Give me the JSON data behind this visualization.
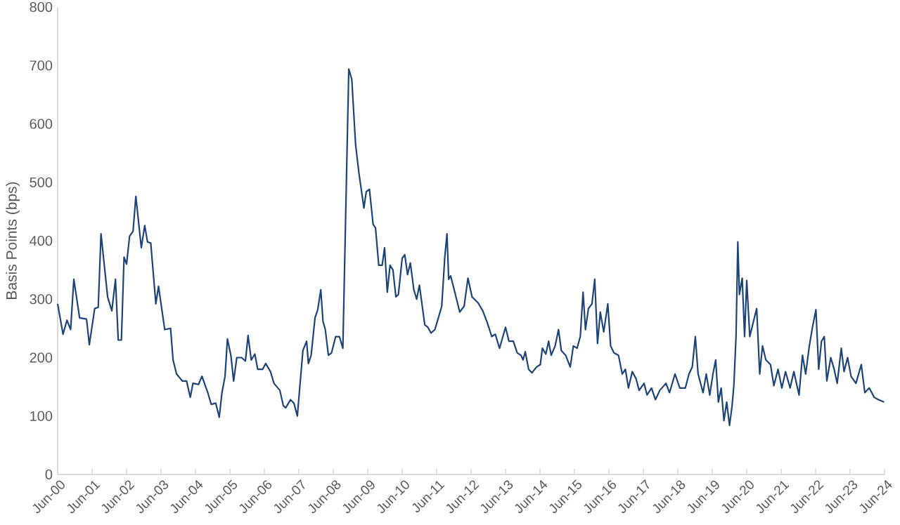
{
  "chart_data": {
    "type": "line",
    "ylabel": "Basis Points (bps)",
    "color": "#1d4478",
    "marker": "none",
    "line_style": "solid",
    "xlim": [
      "2000-06-01",
      "2024-06-01"
    ],
    "ylim": [
      0,
      800
    ],
    "xticks": [
      {
        "value": "2000-06-01",
        "label": "Jun-00"
      },
      {
        "value": "2001-06-01",
        "label": "Jun-01"
      },
      {
        "value": "2002-06-01",
        "label": "Jun-02"
      },
      {
        "value": "2003-06-01",
        "label": "Jun-03"
      },
      {
        "value": "2004-06-01",
        "label": "Jun-04"
      },
      {
        "value": "2005-06-01",
        "label": "Jun-05"
      },
      {
        "value": "2006-06-01",
        "label": "Jun-06"
      },
      {
        "value": "2007-06-01",
        "label": "Jun-07"
      },
      {
        "value": "2008-06-01",
        "label": "Jun-08"
      },
      {
        "value": "2009-06-01",
        "label": "Jun-09"
      },
      {
        "value": "2010-06-01",
        "label": "Jun-10"
      },
      {
        "value": "2011-06-01",
        "label": "Jun-11"
      },
      {
        "value": "2012-06-01",
        "label": "Jun-12"
      },
      {
        "value": "2013-06-01",
        "label": "Jun-13"
      },
      {
        "value": "2014-06-01",
        "label": "Jun-14"
      },
      {
        "value": "2015-06-01",
        "label": "Jun-15"
      },
      {
        "value": "2016-06-01",
        "label": "Jun-16"
      },
      {
        "value": "2017-06-01",
        "label": "Jun-17"
      },
      {
        "value": "2018-06-01",
        "label": "Jun-18"
      },
      {
        "value": "2019-06-01",
        "label": "Jun-19"
      },
      {
        "value": "2020-06-01",
        "label": "Jun-20"
      },
      {
        "value": "2021-06-01",
        "label": "Jun-21"
      },
      {
        "value": "2022-06-01",
        "label": "Jun-22"
      },
      {
        "value": "2023-06-01",
        "label": "Jun-23"
      },
      {
        "value": "2024-06-01",
        "label": "Jun-24"
      }
    ],
    "yticks": [
      0,
      100,
      200,
      300,
      400,
      500,
      600,
      700,
      800
    ],
    "x": [
      "2000-06-01",
      "2000-07-28",
      "2000-09-08",
      "2000-10-17",
      "2000-11-20",
      "2001-01-21",
      "2001-04-03",
      "2001-05-02",
      "2001-06-28",
      "2001-08-05",
      "2001-09-04",
      "2001-11-13",
      "2001-12-28",
      "2002-02-05",
      "2002-03-04",
      "2002-04-07",
      "2002-05-05",
      "2002-06-01",
      "2002-07-03",
      "2002-08-09",
      "2002-09-08",
      "2002-11-05",
      "2002-12-11",
      "2003-01-10",
      "2003-02-13",
      "2003-04-07",
      "2003-05-05",
      "2003-07-10",
      "2003-09-11",
      "2003-10-07",
      "2003-11-13",
      "2004-01-14",
      "2004-02-27",
      "2004-04-07",
      "2004-05-05",
      "2004-07-03",
      "2004-08-09",
      "2004-10-10",
      "2004-11-16",
      "2005-01-03",
      "2005-02-09",
      "2005-03-08",
      "2005-04-10",
      "2005-05-05",
      "2005-06-11",
      "2005-07-10",
      "2005-08-13",
      "2005-10-03",
      "2005-11-13",
      "2005-12-11",
      "2006-01-14",
      "2006-02-20",
      "2006-03-22",
      "2006-05-13",
      "2006-06-15",
      "2006-08-05",
      "2006-09-11",
      "2006-11-13",
      "2006-12-19",
      "2007-01-14",
      "2007-03-04",
      "2007-04-10",
      "2007-05-16",
      "2007-07-14",
      "2007-08-23",
      "2007-09-11",
      "2007-10-10",
      "2007-11-20",
      "2007-12-19",
      "2008-01-21",
      "2008-02-13",
      "2008-03-08",
      "2008-04-10",
      "2008-05-13",
      "2008-06-26",
      "2008-08-05",
      "2008-09-11",
      "2008-11-13",
      "2008-12-15",
      "2009-01-25",
      "2009-02-27",
      "2009-04-21",
      "2009-05-16",
      "2009-06-19",
      "2009-07-28",
      "2009-08-23",
      "2009-09-26",
      "2009-11-02",
      "2009-11-27",
      "2009-12-26",
      "2010-01-25",
      "2010-02-23",
      "2010-03-26",
      "2010-04-21",
      "2010-06-01",
      "2010-06-28",
      "2010-07-28",
      "2010-08-27",
      "2010-10-03",
      "2010-11-02",
      "2010-12-01",
      "2011-01-28",
      "2011-02-27",
      "2011-04-03",
      "2011-05-13",
      "2011-06-19",
      "2011-07-25",
      "2011-08-27",
      "2011-09-19",
      "2011-10-07",
      "2011-10-28",
      "2011-12-11",
      "2012-02-02",
      "2012-03-19",
      "2012-04-28",
      "2012-06-11",
      "2012-08-13",
      "2012-10-03",
      "2012-11-20",
      "2013-01-07",
      "2013-02-13",
      "2013-03-29",
      "2013-06-01",
      "2013-07-07",
      "2013-08-23",
      "2013-10-03",
      "2013-11-13",
      "2013-12-04",
      "2013-12-28",
      "2014-02-02",
      "2014-03-08",
      "2014-04-25",
      "2014-06-04",
      "2014-06-26",
      "2014-08-02",
      "2014-09-01",
      "2014-09-28",
      "2014-11-09",
      "2014-12-15",
      "2015-01-14",
      "2015-02-27",
      "2015-04-17",
      "2015-05-20",
      "2015-06-28",
      "2015-08-02",
      "2015-09-01",
      "2015-09-26",
      "2015-10-28",
      "2015-12-04",
      "2016-01-03",
      "2016-02-02",
      "2016-03-01",
      "2016-04-07",
      "2016-05-20",
      "2016-06-19",
      "2016-07-25",
      "2016-09-11",
      "2016-10-21",
      "2016-11-23",
      "2016-12-26",
      "2017-02-05",
      "2017-03-15",
      "2017-04-17",
      "2017-06-08",
      "2017-07-10",
      "2017-08-27",
      "2017-10-07",
      "2017-11-23",
      "2018-01-28",
      "2018-03-04",
      "2018-05-02",
      "2018-06-22",
      "2018-08-20",
      "2018-09-28",
      "2018-11-02",
      "2018-12-04",
      "2019-01-03",
      "2019-02-23",
      "2019-03-29",
      "2019-05-05",
      "2019-06-08",
      "2019-07-07",
      "2019-08-05",
      "2019-09-04",
      "2019-10-03",
      "2019-11-02",
      "2019-12-01",
      "2019-12-28",
      "2020-01-17",
      "2020-02-09",
      "2020-02-27",
      "2020-03-15",
      "2020-04-14",
      "2020-05-09",
      "2020-06-01",
      "2020-07-03",
      "2020-08-09",
      "2020-09-15",
      "2020-10-17",
      "2020-11-16",
      "2020-12-22",
      "2021-02-09",
      "2021-03-15",
      "2021-04-28",
      "2021-06-08",
      "2021-07-17",
      "2021-09-04",
      "2021-10-14",
      "2021-12-08",
      "2022-01-14",
      "2022-02-16",
      "2022-03-26",
      "2022-04-28",
      "2022-06-04",
      "2022-07-03",
      "2022-08-02",
      "2022-09-01",
      "2022-09-28",
      "2022-11-09",
      "2022-12-15",
      "2023-01-17",
      "2023-02-27",
      "2023-03-29",
      "2023-05-05",
      "2023-06-11",
      "2023-08-02",
      "2023-09-28",
      "2023-11-05",
      "2023-12-22",
      "2024-02-13",
      "2024-03-29",
      "2024-05-27"
    ],
    "values": [
      292,
      240,
      264,
      248,
      334,
      268,
      266,
      222,
      284,
      286,
      412,
      304,
      280,
      334,
      230,
      230,
      372,
      360,
      408,
      416,
      476,
      388,
      426,
      398,
      396,
      292,
      322,
      248,
      250,
      196,
      172,
      160,
      160,
      132,
      156,
      154,
      168,
      140,
      120,
      122,
      98,
      140,
      168,
      232,
      204,
      160,
      200,
      200,
      194,
      238,
      196,
      206,
      180,
      180,
      190,
      176,
      156,
      144,
      118,
      114,
      128,
      122,
      100,
      212,
      228,
      190,
      204,
      268,
      282,
      316,
      262,
      248,
      204,
      208,
      236,
      236,
      216,
      694,
      676,
      564,
      516,
      456,
      484,
      488,
      428,
      422,
      358,
      358,
      388,
      312,
      358,
      350,
      304,
      308,
      370,
      376,
      342,
      362,
      316,
      300,
      324,
      256,
      252,
      242,
      248,
      268,
      288,
      372,
      412,
      334,
      340,
      312,
      278,
      288,
      336,
      304,
      294,
      280,
      260,
      236,
      240,
      216,
      252,
      228,
      228,
      208,
      204,
      196,
      210,
      180,
      174,
      184,
      188,
      216,
      206,
      228,
      204,
      220,
      248,
      212,
      204,
      184,
      220,
      216,
      236,
      312,
      248,
      284,
      292,
      334,
      224,
      278,
      244,
      292,
      220,
      208,
      204,
      172,
      180,
      148,
      176,
      164,
      144,
      156,
      136,
      148,
      128,
      144,
      156,
      140,
      172,
      148,
      148,
      172,
      184,
      236,
      172,
      140,
      172,
      136,
      172,
      196,
      124,
      148,
      92,
      124,
      84,
      116,
      152,
      236,
      398,
      308,
      336,
      236,
      332,
      236,
      260,
      284,
      172,
      220,
      196,
      188,
      152,
      180,
      148,
      176,
      148,
      176,
      136,
      204,
      172,
      220,
      252,
      282,
      180,
      228,
      236,
      160,
      200,
      180,
      156,
      216,
      176,
      200,
      168,
      156,
      188,
      140,
      148,
      132,
      128,
      124
    ]
  }
}
